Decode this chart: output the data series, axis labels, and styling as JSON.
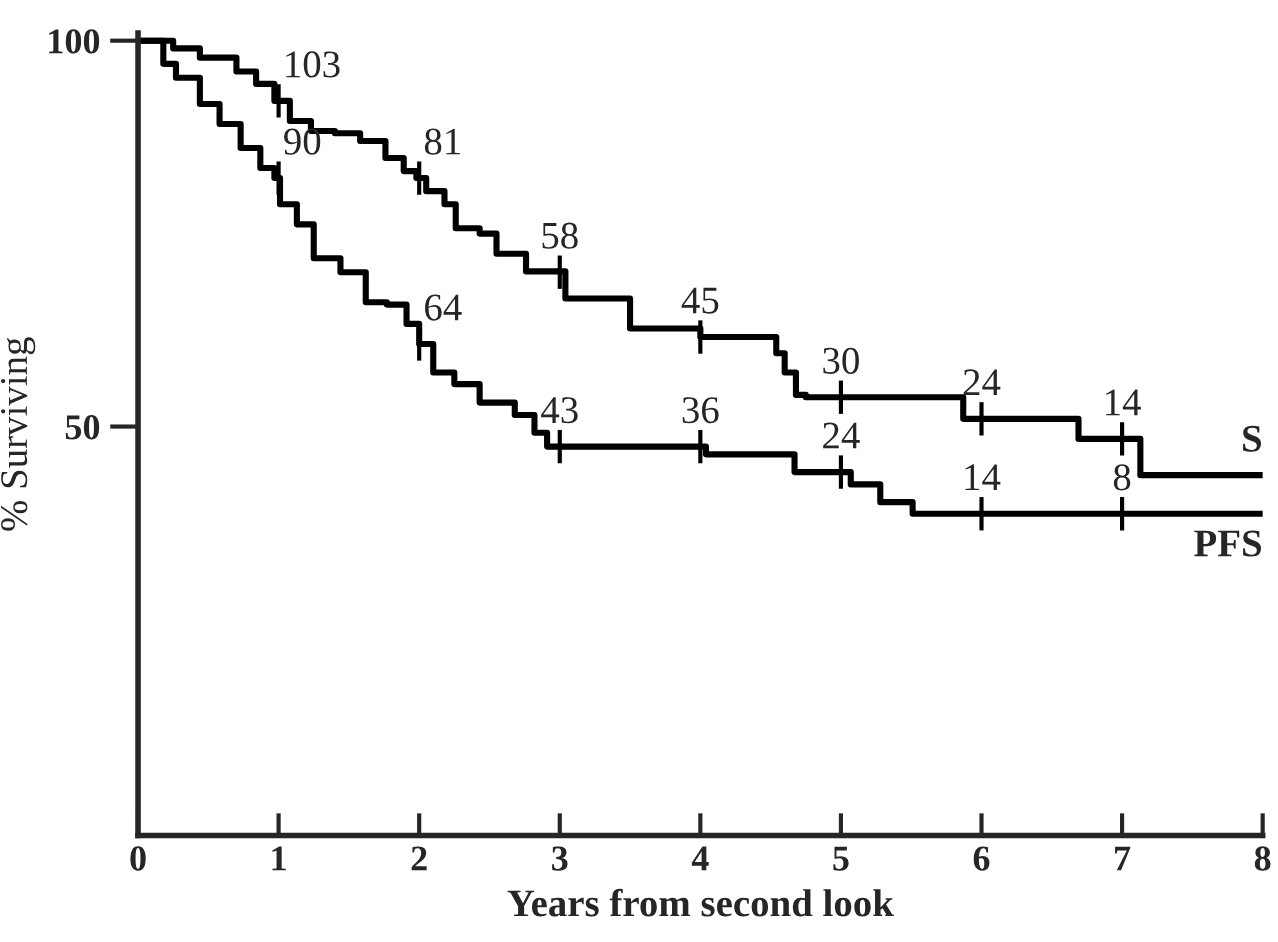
{
  "chart_data": {
    "type": "step",
    "xlabel": "Years from second look",
    "ylabel": "% Surviving",
    "xlim": [
      0,
      8
    ],
    "ylim": [
      -3,
      101
    ],
    "xticks": [
      0,
      1,
      2,
      3,
      4,
      5,
      6,
      7,
      8
    ],
    "yticks": [
      50,
      100
    ],
    "grid": false,
    "legend": false,
    "series": [
      {
        "name": "S",
        "color": "#000000",
        "x": [
          0,
          0.25,
          0.44,
          0.7,
          0.84,
          0.97,
          1.08,
          1.23,
          1.4,
          1.58,
          1.76,
          1.89,
          1.98,
          2.05,
          2.18,
          2.26,
          2.43,
          2.55,
          2.76,
          3.04,
          3.5,
          4.0,
          4.54,
          4.6,
          4.68,
          4.75,
          5.87,
          6.69,
          7.13,
          8.0
        ],
        "values": [
          100,
          99,
          97.8,
          96,
          94.4,
          92.2,
          89.6,
          88.3,
          88,
          87,
          84.8,
          83.1,
          82.2,
          80.5,
          78.8,
          75.7,
          75,
          72.4,
          70.1,
          66.6,
          62.7,
          61.6,
          59.5,
          57,
          54.1,
          53.8,
          51,
          48.4,
          43.7,
          43.7
        ]
      },
      {
        "name": "PFS",
        "color": "#000000",
        "x": [
          0,
          0.18,
          0.27,
          0.44,
          0.58,
          0.73,
          0.87,
          0.97,
          1.01,
          1.13,
          1.25,
          1.44,
          1.62,
          1.77,
          1.91,
          2.0,
          2.1,
          2.25,
          2.43,
          2.68,
          2.82,
          2.91,
          4.04,
          4.67,
          5.07,
          5.28,
          5.51,
          8.0
        ],
        "values": [
          100,
          97,
          95.2,
          91.8,
          89.2,
          86.1,
          83.5,
          82.2,
          78.8,
          76.2,
          71.8,
          70,
          66.1,
          65.8,
          63.3,
          60.7,
          57,
          55.5,
          53.1,
          51.5,
          49.2,
          47.4,
          46.4,
          44.1,
          42.5,
          40.2,
          38.7,
          38.7
        ]
      }
    ],
    "annotations": [
      {
        "text": "103",
        "x": 1,
        "y": 92.2
      },
      {
        "text": "81",
        "x": 2,
        "y": 82.2
      },
      {
        "text": "58",
        "x": 3,
        "y": 70
      },
      {
        "text": "45",
        "x": 4,
        "y": 61.6
      },
      {
        "text": "30",
        "x": 5,
        "y": 53.8
      },
      {
        "text": "24",
        "x": 6,
        "y": 51
      },
      {
        "text": "14",
        "x": 7,
        "y": 48.4
      },
      {
        "text": "90",
        "x": 1,
        "y": 82.2
      },
      {
        "text": "64",
        "x": 2,
        "y": 60.7
      },
      {
        "text": "43",
        "x": 3,
        "y": 47.4
      },
      {
        "text": "36",
        "x": 4,
        "y": 47.4
      },
      {
        "text": "24",
        "x": 5,
        "y": 44.1
      },
      {
        "text": "14",
        "x": 6,
        "y": 38.7
      },
      {
        "text": "8",
        "x": 7,
        "y": 38.7
      }
    ]
  }
}
